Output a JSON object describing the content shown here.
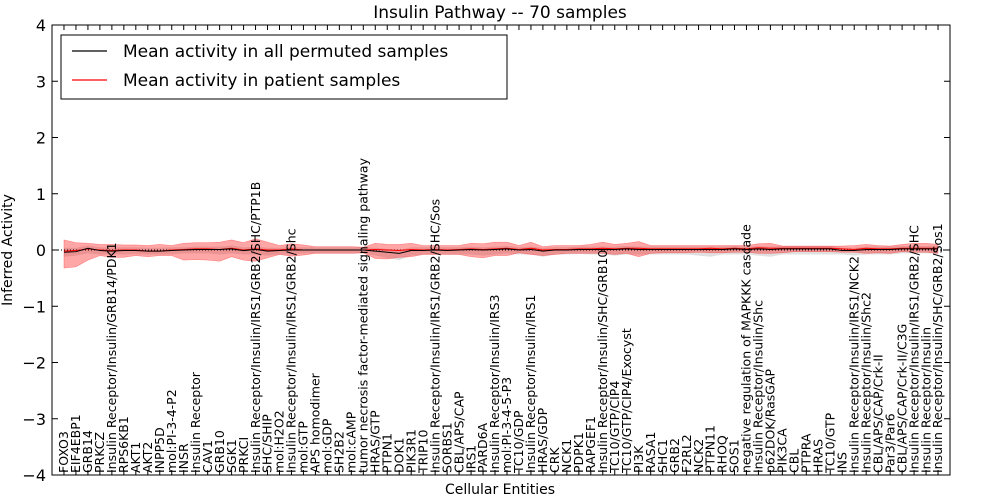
{
  "chart_data": {
    "type": "line",
    "title": "Insulin Pathway -- 70 samples",
    "xlabel": "Cellular Entities",
    "ylabel": "Inferred Activity",
    "ylim": [
      -4,
      4
    ],
    "yticks": [
      -4,
      -3,
      -2,
      -1,
      0,
      1,
      2,
      3,
      4
    ],
    "ytick_labels": [
      "−4",
      "−3",
      "−2",
      "−1",
      "0",
      "1",
      "2",
      "3",
      "4"
    ],
    "legend": {
      "placement": "top-left",
      "entries": [
        {
          "label": "Mean activity in all permuted samples",
          "color": "#000000"
        },
        {
          "label": "Mean activity in patient samples",
          "color": "#ff0000"
        }
      ]
    },
    "colors": {
      "permuted_line": "#000000",
      "patient_line": "#ff0000",
      "patient_band": "#ff0000",
      "permuted_band": "#999999",
      "zero_line": "#000000"
    },
    "categories": [
      "FOXO3",
      "EIF4EBP1",
      "GRB14",
      "PRKCZ",
      "Insulin Receptor/Insulin/GRB14/PDK1",
      "RPS6KB1",
      "AKT1",
      "AKT2",
      "INPP5D",
      "mol:PI-3-4-P2",
      "INSR",
      "Insulin Receptor",
      "CAV1",
      "GRB10",
      "SGK1",
      "PRKCI",
      "Insulin Receptor/Insulin/IRS1/GRB2/SHC/PTP1B",
      "SHC/SHIP",
      "mol:H2O2",
      "Insulin Receptor/Insulin/IRS1/GRB2/Shc",
      "mol:GTP",
      "APS homodimer",
      "mol:GDP",
      "SH2B2",
      "mol:cAMP",
      "tumor necrosis factor-mediated signaling pathway",
      "HRAS/GTP",
      "PTPN1",
      "DOK1",
      "PIK3R1",
      "TRIP10",
      "Insulin Receptor/Insulin/IRS1/GRB2/SHC/Sos",
      "SORBS1",
      "CBL/APS/CAP",
      "IRS1",
      "PARD6A",
      "Insulin Receptor/Insulin/IRS3",
      "mol:PI-3-4-5-P3",
      "TC10/GDP",
      "Insulin Receptor/Insulin/IRS1",
      "HRAS/GDP",
      "CRK",
      "NCK1",
      "PDPK1",
      "RAPGEF1",
      "Insulin Receptor/Insulin/SHC/GRB10",
      "TC10/GTP/CIP4",
      "TC10/GTP/CIP4/Exocyst",
      "PI3K",
      "RASA1",
      "SHC1",
      "GRB2",
      "F2RL2",
      "NCK2",
      "PTPN11",
      "RHOQ",
      "SOS1",
      "negative regulation of MAPKKK cascade",
      "Insulin Receptor/Insulin/Shc",
      "p62DOK/RasGAP",
      "PIK3CA",
      "CBL",
      "PTPRA",
      "HRAS",
      "TC10/GTP",
      "INS",
      "Insulin Receptor/Insulin/IRS1/NCK2",
      "Insulin Receptor/Insulin/Shc2",
      "CBL/APS/CAP/Crk-II",
      "Par3/Par6",
      "CBL/APS/CAP/Crk-II/C3G",
      "Insulin Receptor/Insulin/IRS1/GRB2/SHC",
      "Insulin Receptor/Insulin",
      "Insulin Receptor/Insulin/SHC/GRB2/Sos1"
    ],
    "series": [
      {
        "name": "Mean activity in patient samples",
        "values": [
          -0.02,
          -0.01,
          0.02,
          0.0,
          -0.01,
          0.0,
          0.0,
          -0.02,
          -0.02,
          0.0,
          0.01,
          0.02,
          0.02,
          0.01,
          0.03,
          0.0,
          0.02,
          0.0,
          0.0,
          0.02,
          0.0,
          0.0,
          0.0,
          0.0,
          0.0,
          0.0,
          0.01,
          0.0,
          -0.01,
          0.01,
          0.0,
          0.01,
          0.0,
          0.01,
          0.02,
          0.01,
          0.02,
          0.03,
          0.01,
          0.03,
          0.0,
          0.01,
          0.01,
          0.02,
          0.02,
          0.03,
          0.02,
          0.03,
          0.03,
          0.02,
          0.02,
          0.02,
          0.02,
          0.02,
          0.03,
          0.02,
          0.03,
          0.02,
          0.04,
          0.03,
          0.03,
          0.03,
          0.03,
          0.03,
          0.03,
          0.02,
          0.01,
          0.03,
          0.02,
          0.02,
          0.03,
          0.03,
          0.03,
          0.03
        ],
        "lower": [
          -0.32,
          -0.3,
          -0.18,
          -0.1,
          -0.13,
          -0.13,
          -0.1,
          -0.12,
          -0.1,
          -0.1,
          -0.18,
          -0.17,
          -0.18,
          -0.2,
          -0.12,
          -0.18,
          -0.2,
          -0.14,
          -0.08,
          -0.11,
          -0.09,
          -0.06,
          -0.06,
          -0.06,
          -0.06,
          -0.05,
          -0.15,
          -0.16,
          -0.13,
          -0.12,
          -0.08,
          -0.08,
          -0.08,
          -0.08,
          -0.12,
          -0.14,
          -0.1,
          -0.1,
          -0.05,
          -0.08,
          -0.1,
          -0.08,
          -0.06,
          -0.06,
          -0.06,
          -0.06,
          -0.08,
          -0.06,
          -0.12,
          -0.06,
          -0.05,
          -0.05,
          -0.05,
          -0.04,
          -0.05,
          -0.05,
          -0.04,
          -0.04,
          -0.06,
          -0.06,
          -0.05,
          -0.03,
          -0.03,
          -0.03,
          -0.03,
          -0.04,
          -0.04,
          -0.06,
          -0.05,
          -0.06,
          -0.03,
          -0.04,
          -0.04,
          -0.06
        ],
        "upper": [
          0.18,
          0.13,
          0.12,
          0.1,
          0.1,
          0.09,
          0.09,
          0.08,
          0.1,
          0.08,
          0.12,
          0.13,
          0.13,
          0.14,
          0.18,
          0.13,
          0.2,
          0.14,
          0.08,
          0.11,
          0.09,
          0.06,
          0.06,
          0.06,
          0.06,
          0.05,
          0.12,
          0.1,
          0.1,
          0.12,
          0.08,
          0.08,
          0.08,
          0.08,
          0.12,
          0.11,
          0.14,
          0.14,
          0.08,
          0.14,
          0.06,
          0.08,
          0.08,
          0.08,
          0.1,
          0.14,
          0.1,
          0.12,
          0.15,
          0.08,
          0.08,
          0.08,
          0.08,
          0.08,
          0.08,
          0.08,
          0.08,
          0.08,
          0.11,
          0.12,
          0.07,
          0.07,
          0.07,
          0.07,
          0.07,
          0.07,
          0.08,
          0.1,
          0.08,
          0.07,
          0.1,
          0.12,
          0.12,
          0.1
        ]
      },
      {
        "name": "Mean activity in all permuted samples",
        "values": [
          -0.04,
          -0.03,
          0.03,
          -0.01,
          -0.02,
          -0.01,
          -0.01,
          -0.02,
          -0.02,
          -0.01,
          0.0,
          0.01,
          0.01,
          0.01,
          0.02,
          -0.01,
          0.01,
          -0.02,
          -0.01,
          0.0,
          0.0,
          0.0,
          0.0,
          0.0,
          0.0,
          0.0,
          -0.02,
          -0.04,
          -0.06,
          -0.01,
          -0.01,
          0.0,
          -0.01,
          0.0,
          0.01,
          0.0,
          0.01,
          0.02,
          0.0,
          0.01,
          -0.02,
          0.0,
          0.0,
          0.01,
          0.01,
          0.01,
          0.01,
          0.02,
          0.01,
          0.01,
          0.01,
          0.01,
          0.01,
          0.01,
          0.01,
          0.01,
          0.02,
          0.01,
          0.02,
          0.01,
          0.02,
          0.02,
          0.02,
          0.02,
          0.02,
          -0.01,
          -0.01,
          0.01,
          0.01,
          0.01,
          0.02,
          0.02,
          0.02,
          0.02
        ],
        "lower": [
          -0.12,
          -0.1,
          -0.06,
          -0.08,
          -0.08,
          -0.08,
          -0.07,
          -0.08,
          -0.08,
          -0.08,
          -0.06,
          -0.06,
          -0.06,
          -0.08,
          -0.06,
          -0.08,
          -0.08,
          -0.1,
          -0.08,
          -0.08,
          -0.06,
          -0.06,
          -0.06,
          -0.06,
          -0.06,
          -0.06,
          -0.1,
          -0.14,
          -0.18,
          -0.1,
          -0.08,
          -0.08,
          -0.08,
          -0.08,
          -0.08,
          -0.1,
          -0.08,
          -0.06,
          -0.08,
          -0.08,
          -0.12,
          -0.08,
          -0.08,
          -0.07,
          -0.08,
          -0.08,
          -0.1,
          -0.08,
          -0.08,
          -0.08,
          -0.08,
          -0.08,
          -0.08,
          -0.1,
          -0.12,
          -0.08,
          -0.08,
          -0.08,
          -0.1,
          -0.12,
          -0.08,
          -0.08,
          -0.08,
          -0.08,
          -0.08,
          -0.08,
          -0.1,
          -0.08,
          -0.08,
          -0.08,
          -0.06,
          -0.06,
          -0.06,
          -0.06
        ],
        "upper": [
          0.04,
          0.04,
          0.08,
          0.05,
          0.04,
          0.05,
          0.05,
          0.04,
          0.04,
          0.05,
          0.05,
          0.06,
          0.06,
          0.06,
          0.08,
          0.05,
          0.06,
          0.04,
          0.04,
          0.05,
          0.05,
          0.05,
          0.05,
          0.05,
          0.05,
          0.05,
          0.04,
          0.02,
          0.0,
          0.05,
          0.05,
          0.05,
          0.05,
          0.05,
          0.06,
          0.05,
          0.06,
          0.07,
          0.05,
          0.06,
          0.04,
          0.05,
          0.05,
          0.06,
          0.06,
          0.06,
          0.06,
          0.07,
          0.06,
          0.06,
          0.06,
          0.06,
          0.06,
          0.06,
          0.06,
          0.06,
          0.07,
          0.06,
          0.07,
          0.06,
          0.07,
          0.07,
          0.07,
          0.07,
          0.07,
          0.04,
          0.04,
          0.06,
          0.06,
          0.06,
          0.07,
          0.07,
          0.07,
          0.07
        ]
      }
    ]
  }
}
